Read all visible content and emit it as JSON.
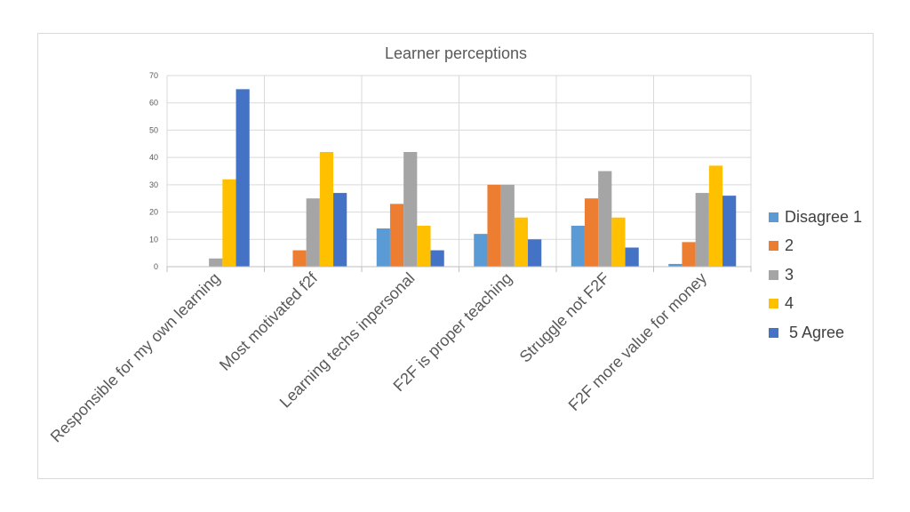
{
  "chart_data": {
    "type": "bar",
    "title": "Learner perceptions",
    "xlabel": "",
    "ylabel": "",
    "ylim": [
      0,
      70
    ],
    "yticks": [
      0,
      10,
      20,
      30,
      40,
      50,
      60,
      70
    ],
    "grid": true,
    "legend_position": "right",
    "categories": [
      "Responsible for my own learning",
      "Most motivated f2f",
      "Learning techs inpersonal",
      "F2F is proper teaching",
      "Struggle not F2F",
      "F2F more value for money"
    ],
    "series": [
      {
        "name": "Disagree 1",
        "color": "#5b9bd5",
        "values": [
          0,
          0,
          14,
          12,
          15,
          1
        ]
      },
      {
        "name": "2",
        "color": "#ed7d31",
        "values": [
          0,
          6,
          23,
          30,
          25,
          9
        ]
      },
      {
        "name": "3",
        "color": "#a5a5a5",
        "values": [
          3,
          25,
          42,
          30,
          35,
          27
        ]
      },
      {
        "name": "4",
        "color": "#ffc000",
        "values": [
          32,
          42,
          15,
          18,
          18,
          37
        ]
      },
      {
        "name": " 5 Agree",
        "color": "#4472c4",
        "values": [
          65,
          27,
          6,
          10,
          7,
          26
        ]
      }
    ]
  }
}
